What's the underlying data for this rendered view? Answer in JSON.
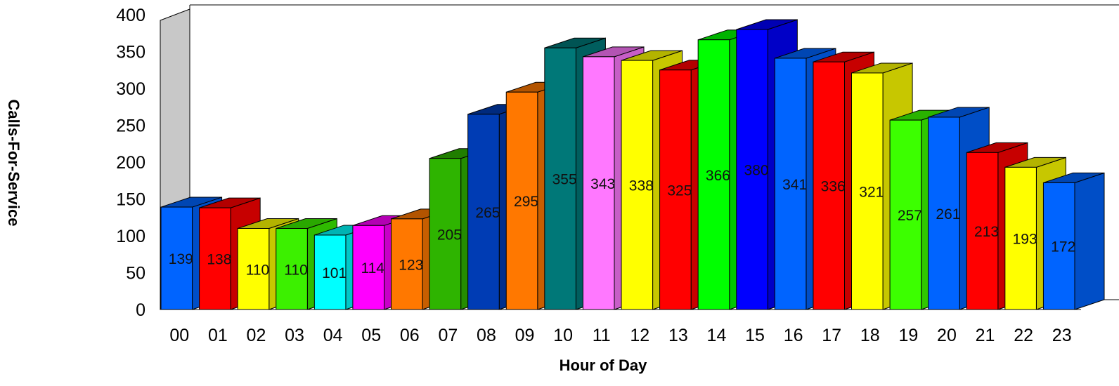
{
  "chart_data": {
    "type": "bar",
    "title": "",
    "xlabel": "Hour of Day",
    "ylabel": "Calls-For-Service",
    "ylim": [
      0,
      400
    ],
    "yticks": [
      0,
      50,
      100,
      150,
      200,
      250,
      300,
      350,
      400
    ],
    "categories": [
      "00",
      "01",
      "02",
      "03",
      "04",
      "05",
      "06",
      "07",
      "08",
      "09",
      "10",
      "11",
      "12",
      "13",
      "14",
      "15",
      "16",
      "17",
      "18",
      "19",
      "20",
      "21",
      "22",
      "23"
    ],
    "values": [
      139,
      138,
      110,
      110,
      101,
      114,
      123,
      205,
      265,
      295,
      355,
      343,
      338,
      325,
      366,
      380,
      341,
      336,
      321,
      257,
      261,
      213,
      193,
      172
    ],
    "bar_labels": [
      "139",
      "138",
      "110",
      "110",
      "101",
      "114",
      "123",
      "205",
      "265",
      "295",
      "355",
      "343",
      "338",
      "325",
      "366",
      "380",
      "341",
      "336",
      "321",
      "257",
      "261",
      "213",
      "193",
      "172"
    ],
    "colors": [
      "#0064ff",
      "#ff0000",
      "#ffff00",
      "#3cf000",
      "#00ffff",
      "#ff00ff",
      "#ff7800",
      "#2eb400",
      "#003cb4",
      "#ff7800",
      "#007878",
      "#ff78ff",
      "#ffff00",
      "#ff0000",
      "#00ff00",
      "#0000ff",
      "#0064ff",
      "#ff0000",
      "#ffff00",
      "#3cff00",
      "#0064ff",
      "#ff0000",
      "#ffff00",
      "#0064ff"
    ],
    "grid": false,
    "legend": "none",
    "style": "3d-bar"
  }
}
